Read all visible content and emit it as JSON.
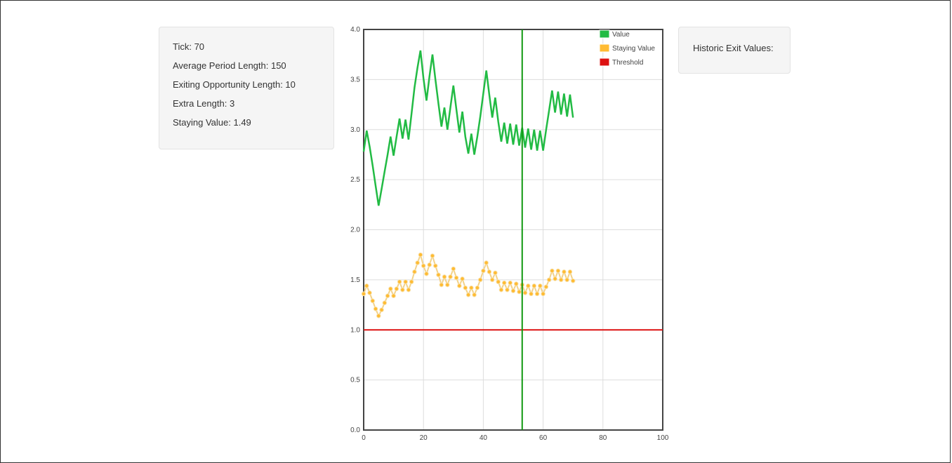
{
  "info": {
    "tick": "Tick: 70",
    "average_period_length": "Average Period Length: 150",
    "exiting_opportunity_length": "Exiting Opportunity Length: 10",
    "extra_length": "Extra Length: 3",
    "staying_value": "Staying Value: 1.49"
  },
  "history": {
    "title": "Historic Exit Values:"
  },
  "colors": {
    "value": "#22bb44",
    "staying_value": "#ffbb33",
    "threshold": "#dd1111",
    "marker": "#119911",
    "grid": "#dddddd",
    "axis": "#444444"
  },
  "chart_data": {
    "type": "line",
    "xlim": [
      0,
      100
    ],
    "ylim": [
      0,
      4
    ],
    "x_ticks": [
      0,
      20,
      40,
      60,
      80,
      100
    ],
    "y_ticks": [
      "0.0",
      "0.5",
      "1.0",
      "1.5",
      "2.0",
      "2.5",
      "3.0",
      "3.5",
      "4.0"
    ],
    "grid": true,
    "legend_position": "top-right",
    "marker_x": 53,
    "series": [
      {
        "name": "Value",
        "color": "#22bb44",
        "x": [
          0,
          1,
          2,
          3,
          4,
          5,
          6,
          7,
          8,
          9,
          10,
          11,
          12,
          13,
          14,
          15,
          16,
          17,
          18,
          19,
          20,
          21,
          22,
          23,
          24,
          25,
          26,
          27,
          28,
          29,
          30,
          31,
          32,
          33,
          34,
          35,
          36,
          37,
          38,
          39,
          40,
          41,
          42,
          43,
          44,
          45,
          46,
          47,
          48,
          49,
          50,
          51,
          52,
          53,
          54,
          55,
          56,
          57,
          58,
          59,
          60,
          61,
          62,
          63,
          64,
          65,
          66,
          67,
          68,
          69,
          70
        ],
        "y": [
          2.78,
          2.99,
          2.83,
          2.64,
          2.44,
          2.24,
          2.41,
          2.58,
          2.75,
          2.93,
          2.74,
          2.93,
          3.11,
          2.91,
          3.1,
          2.9,
          3.16,
          3.42,
          3.62,
          3.79,
          3.51,
          3.29,
          3.53,
          3.75,
          3.5,
          3.26,
          3.03,
          3.22,
          3.0,
          3.22,
          3.44,
          3.2,
          2.97,
          3.18,
          2.93,
          2.76,
          2.96,
          2.75,
          2.93,
          3.13,
          3.36,
          3.59,
          3.35,
          3.12,
          3.32,
          3.08,
          2.88,
          3.07,
          2.86,
          3.06,
          2.85,
          3.05,
          2.84,
          3.02,
          2.82,
          3.01,
          2.8,
          3.0,
          2.79,
          2.99,
          2.79,
          3.0,
          3.19,
          3.39,
          3.17,
          3.38,
          3.15,
          3.36,
          3.13,
          3.35,
          3.12
        ]
      },
      {
        "name": "Staying Value",
        "color": "#ffbb33",
        "x": [
          0,
          1,
          2,
          3,
          4,
          5,
          6,
          7,
          8,
          9,
          10,
          11,
          12,
          13,
          14,
          15,
          16,
          17,
          18,
          19,
          20,
          21,
          22,
          23,
          24,
          25,
          26,
          27,
          28,
          29,
          30,
          31,
          32,
          33,
          34,
          35,
          36,
          37,
          38,
          39,
          40,
          41,
          42,
          43,
          44,
          45,
          46,
          47,
          48,
          49,
          50,
          51,
          52,
          53,
          54,
          55,
          56,
          57,
          58,
          59,
          60,
          61,
          62,
          63,
          64,
          65,
          66,
          67,
          68,
          69,
          70
        ],
        "y": [
          1.36,
          1.44,
          1.37,
          1.29,
          1.21,
          1.14,
          1.2,
          1.27,
          1.34,
          1.41,
          1.34,
          1.41,
          1.48,
          1.4,
          1.48,
          1.4,
          1.48,
          1.58,
          1.67,
          1.75,
          1.64,
          1.56,
          1.65,
          1.74,
          1.64,
          1.55,
          1.45,
          1.53,
          1.45,
          1.53,
          1.61,
          1.52,
          1.44,
          1.51,
          1.42,
          1.35,
          1.42,
          1.35,
          1.42,
          1.5,
          1.59,
          1.67,
          1.58,
          1.5,
          1.57,
          1.48,
          1.4,
          1.47,
          1.4,
          1.47,
          1.39,
          1.46,
          1.38,
          1.45,
          1.37,
          1.44,
          1.36,
          1.44,
          1.36,
          1.44,
          1.36,
          1.43,
          1.5,
          1.59,
          1.51,
          1.59,
          1.5,
          1.58,
          1.5,
          1.58,
          1.49
        ]
      },
      {
        "name": "Threshold",
        "color": "#dd1111",
        "x": [
          0,
          100
        ],
        "y": [
          1.0,
          1.0
        ]
      }
    ]
  }
}
